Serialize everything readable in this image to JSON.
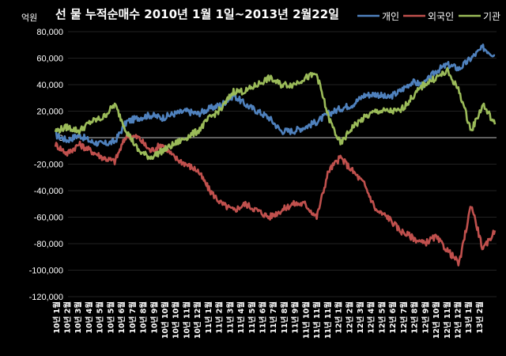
{
  "chart_data": {
    "type": "line",
    "title": "선  물  누적순매수 2010년 1월 1일~2013년 2월22일",
    "ylabel": "억원",
    "xlabel": "",
    "ylim": [
      -120000,
      80000
    ],
    "yticks": [
      80000,
      60000,
      40000,
      20000,
      0,
      -20000,
      -40000,
      -60000,
      -80000,
      -100000,
      -120000
    ],
    "ytick_labels": [
      "80,000",
      "60,000",
      "40,000",
      "20,000",
      "0",
      "-20,000",
      "-40,000",
      "-60,000",
      "-80,000",
      "-100,000",
      "-120,000"
    ],
    "grid": true,
    "legend_position": "top-right",
    "categories": [
      "10년 1월",
      "10년 2월",
      "10년 3월",
      "10년 4월",
      "10년 5월",
      "10년 6월",
      "10년 7월",
      "10년 8월",
      "10년 9월",
      "10년 10월",
      "10년 11월",
      "10년 12월",
      "11년 1월",
      "11년 2월",
      "11년 3월",
      "11년 4월",
      "11년 5월",
      "11년 6월",
      "11년 7월",
      "11년 8월",
      "11년 9월",
      "11년 10월",
      "11년 11월",
      "11년 12월",
      "12년 1월",
      "12년 2월",
      "12년 3월",
      "12년 4월",
      "12년 5월",
      "12년 6월",
      "12년 7월",
      "12년 8월",
      "12년 9월",
      "12년 10월",
      "12년 11월",
      "12년 12월",
      "13년 1월",
      "13년 2월"
    ],
    "x_tick_labels": [
      "10년 1월",
      "10년 2월",
      "10년 3월",
      "10년 4월",
      "10년 5월",
      "10년 5월",
      "10년 6월",
      "10년 7월",
      "10년 8월",
      "10년 9월",
      "10년 10월",
      "10년 10월",
      "10년 11월",
      "10년 12월",
      "11년 1월",
      "11년 2월",
      "11년 3월",
      "11년 4월",
      "11년 5월",
      "11년 6월",
      "11년 7월",
      "11년 8월",
      "11년 9월",
      "11년 10월",
      "11년 11월",
      "11년 11월",
      "12년 1월",
      "12년 2월",
      "12년 3월",
      "12년 4월",
      "12년 5월",
      "12년 6월",
      "12년 7월",
      "12년 8월",
      "12년 9월",
      "12년 10월",
      "12년 11월",
      "12년 12월",
      "13년 1월",
      "13년 2월"
    ],
    "series": [
      {
        "name": "개인",
        "color": "#4f81bd",
        "values": [
          2000,
          -2000,
          2000,
          -3000,
          -5000,
          -3000,
          12000,
          15000,
          17000,
          15000,
          18000,
          20000,
          18000,
          22000,
          25000,
          32000,
          25000,
          20000,
          15000,
          5000,
          5000,
          8000,
          12000,
          18000,
          22000,
          25000,
          32000,
          33000,
          30000,
          35000,
          42000,
          40000,
          50000,
          55000,
          52000,
          60000,
          68000,
          62000
        ]
      },
      {
        "name": "외국인",
        "color": "#c0504d",
        "values": [
          -5000,
          -12000,
          -5000,
          -10000,
          -15000,
          -18000,
          2000,
          0,
          -10000,
          -5000,
          -15000,
          -20000,
          -25000,
          -40000,
          -50000,
          -55000,
          -50000,
          -55000,
          -60000,
          -55000,
          -50000,
          -50000,
          -60000,
          -25000,
          -15000,
          -25000,
          -35000,
          -55000,
          -60000,
          -70000,
          -75000,
          -80000,
          -75000,
          -85000,
          -95000,
          -50000,
          -85000,
          -70000
        ]
      },
      {
        "name": "기관",
        "color": "#9bbb59",
        "values": [
          5000,
          8000,
          5000,
          12000,
          15000,
          25000,
          5000,
          -10000,
          -15000,
          -10000,
          -5000,
          0,
          5000,
          15000,
          22000,
          35000,
          35000,
          40000,
          45000,
          40000,
          40000,
          45000,
          48000,
          15000,
          -5000,
          8000,
          15000,
          20000,
          20000,
          20000,
          30000,
          40000,
          45000,
          50000,
          35000,
          5000,
          25000,
          10000
        ]
      }
    ]
  }
}
